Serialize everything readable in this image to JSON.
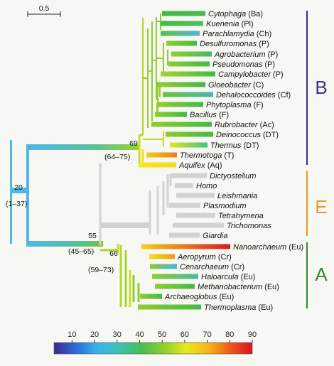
{
  "scale_bar": {
    "label": "0.5"
  },
  "colorbar": {
    "ticks": [
      "10",
      "20",
      "30",
      "40",
      "50",
      "60",
      "70",
      "80",
      "90"
    ],
    "stops": [
      "#3a2b8f",
      "#2b6ed6",
      "#39b4ec",
      "#3cc2b0",
      "#46be4e",
      "#8fcf2c",
      "#e6ea1c",
      "#f7b41a",
      "#ee5a1a",
      "#d8102a"
    ]
  },
  "domains": [
    {
      "letter": "B",
      "color": "#3a2e8a"
    },
    {
      "letter": "E",
      "color": "#e39a22"
    },
    {
      "letter": "A",
      "color": "#2f8a35"
    }
  ],
  "taxa": [
    {
      "name": "Cytophaga",
      "group": "(Ba)",
      "c1": "#43b944",
      "c2": "#49b94c"
    },
    {
      "name": "Kuenenia",
      "group": "(Pl)",
      "c1": "#43b944",
      "c2": "#55c05a"
    },
    {
      "name": "Parachlamydia",
      "group": "(Ch)",
      "c1": "#55bf4b",
      "c2": "#57b6d6"
    },
    {
      "name": "Desulfuromonas",
      "group": "(P)",
      "c1": "#8fcd2d",
      "c2": "#43ba45"
    },
    {
      "name": "Agrobacterium",
      "group": "(P)",
      "c1": "#8fcd2d",
      "c2": "#46b96a"
    },
    {
      "name": "Pseudomonas",
      "group": "(P)",
      "c1": "#8fcd2d",
      "c2": "#43ba45"
    },
    {
      "name": "Campylobacter",
      "group": "(P)",
      "c1": "#a8d42a",
      "c2": "#43ba45"
    },
    {
      "name": "Gloeobacter",
      "group": "(C)",
      "c1": "#8fcd2d",
      "c2": "#43ba45"
    },
    {
      "name": "Dehalococcoides",
      "group": "(Cf)",
      "c1": "#66c33c",
      "c2": "#4bb7b0"
    },
    {
      "name": "Phytoplasma",
      "group": "(F)",
      "c1": "#8fcd2d",
      "c2": "#43ba45"
    },
    {
      "name": "Bacillus",
      "group": "(F)",
      "c1": "#8fcd2d",
      "c2": "#43ba45"
    },
    {
      "name": "Rubrobacter",
      "group": "(Ac)",
      "c1": "#8fcd2d",
      "c2": "#43ba45"
    },
    {
      "name": "Deinococcus",
      "group": "(DT)",
      "c1": "#8fcd2d",
      "c2": "#43ba45"
    },
    {
      "name": "Thermus",
      "group": "(DT)",
      "c1": "#e6e220",
      "c2": "#3cc87a"
    },
    {
      "name": "Thermotoga",
      "group": "(T)",
      "c1": "#f2ce1a",
      "c2": "#ee7a1c"
    },
    {
      "name": "Aquifex",
      "group": "(Aq)",
      "c1": "#f6e91a",
      "c2": "#f6d71a"
    },
    {
      "name": "Dictyostelium",
      "group": "",
      "c1": "#d2d2d2",
      "c2": "#d2d2d2"
    },
    {
      "name": "Homo",
      "group": "",
      "c1": "#d2d2d2",
      "c2": "#d2d2d2"
    },
    {
      "name": "Leishmania",
      "group": "",
      "c1": "#d2d2d2",
      "c2": "#d2d2d2"
    },
    {
      "name": "Plasmodium",
      "group": "",
      "c1": "#d2d2d2",
      "c2": "#d2d2d2"
    },
    {
      "name": "Tetrahymena",
      "group": "",
      "c1": "#d2d2d2",
      "c2": "#d2d2d2"
    },
    {
      "name": "Trichomonas",
      "group": "",
      "c1": "#d2d2d2",
      "c2": "#d2d2d2"
    },
    {
      "name": "Giardia",
      "group": "",
      "c1": "#d2d2d2",
      "c2": "#d2d2d2"
    },
    {
      "name": "Nanoarchaeum",
      "group": "(Eu)",
      "c1": "#f4d01c",
      "c2": "#d61c22"
    },
    {
      "name": "Aeropyrum",
      "group": "(Cr)",
      "c1": "#f0e11c",
      "c2": "#f09a1c"
    },
    {
      "name": "Cenarchaeum",
      "group": "(Cr)",
      "c1": "#8fcd2d",
      "c2": "#47b5e0"
    },
    {
      "name": "Haloarcula",
      "group": "(Eu)",
      "c1": "#8fcd2d",
      "c2": "#45b9a0"
    },
    {
      "name": "Methanobacterium",
      "group": "(Eu)",
      "c1": "#8fcd2d",
      "c2": "#43ba45"
    },
    {
      "name": "Archaeoglobus",
      "group": "(Eu)",
      "c1": "#8fcd2d",
      "c2": "#43ba45"
    },
    {
      "name": "Thermoplasma",
      "group": "(Eu)",
      "c1": "#8fcd2d",
      "c2": "#43ba45"
    }
  ],
  "node_labels": [
    {
      "id": "root",
      "support": "20",
      "interval": "(1–37)"
    },
    {
      "id": "bacteria",
      "support": "69",
      "interval": "(64–75)"
    },
    {
      "id": "arch-euk",
      "support": "55",
      "interval": "(45–65)"
    },
    {
      "id": "archaea",
      "support": "66",
      "interval": "(59–73)"
    }
  ],
  "colors": {
    "root_branch": "#4fb6e6",
    "bacteria_stem": "#50b8e0",
    "arch_stem": "#4fb6e6",
    "euk_branch": "#d2d2d2"
  }
}
